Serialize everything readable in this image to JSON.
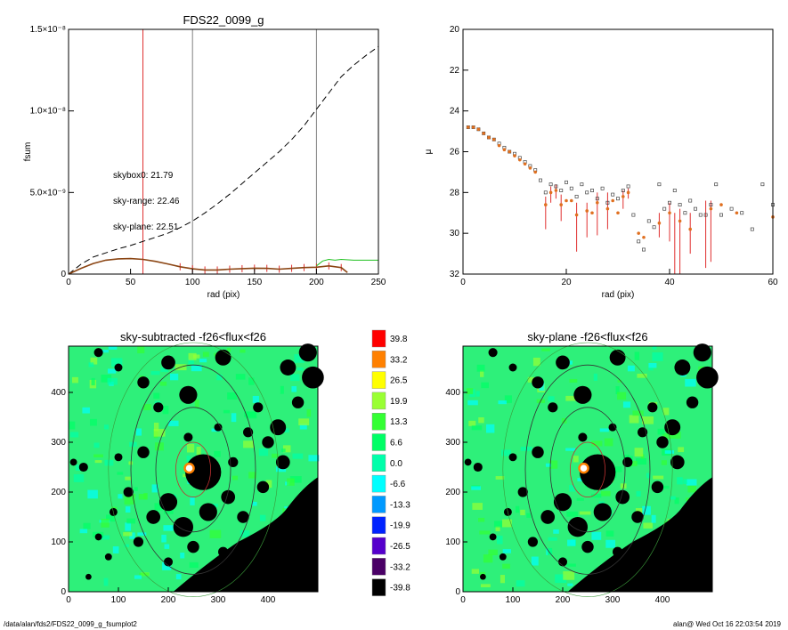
{
  "footer": {
    "path": "/data/alan/fds2/FDS22_0099_g_fsumplot2",
    "stamp": "alan@  Wed Oct 16 22:03:54 2019"
  },
  "chart_data": [
    {
      "type": "line",
      "title": "FDS22_0099_g",
      "xlabel": "rad (pix)",
      "ylabel": "fsum",
      "xlim": [
        0,
        250
      ],
      "ylim": [
        0,
        1.5e-08
      ],
      "xticks": [
        "0",
        "50",
        "100",
        "150",
        "200",
        "250"
      ],
      "yticks": [
        "0",
        "5.0×10⁻⁹",
        "1.0×10⁻⁸",
        "1.5×10⁻⁸"
      ],
      "vlines": [
        {
          "x": 60,
          "color": "#e03030"
        },
        {
          "x": 100,
          "color": "#808080"
        },
        {
          "x": 200,
          "color": "#808080"
        }
      ],
      "annotations": [
        {
          "text": "skybox0: 21.79",
          "color": "#000000"
        },
        {
          "text": "sky-range: 22.46",
          "color": "#e02020"
        },
        {
          "text": "sky-plane: 22.51",
          "color": "#20c020"
        }
      ],
      "series": [
        {
          "style": "dashed",
          "color": "#000000",
          "x": [
            0,
            10,
            20,
            30,
            40,
            50,
            60,
            70,
            80,
            90,
            100,
            110,
            120,
            130,
            140,
            150,
            160,
            170,
            180,
            190,
            200,
            210,
            220,
            230,
            240,
            250
          ],
          "y": [
            0,
            6e-10,
            1.05e-09,
            1.3e-09,
            1.55e-09,
            1.75e-09,
            2e-09,
            2.25e-09,
            2.5e-09,
            2.85e-09,
            3.25e-09,
            3.75e-09,
            4.3e-09,
            4.9e-09,
            5.55e-09,
            6.2e-09,
            6.85e-09,
            7.5e-09,
            8.25e-09,
            9.1e-09,
            1.01e-08,
            1.11e-08,
            1.21e-08,
            1.28e-08,
            1.34e-08,
            1.395e-08
          ]
        },
        {
          "style": "solid",
          "color": "#8b4513",
          "x": [
            0,
            10,
            20,
            30,
            40,
            50,
            60,
            70,
            80,
            90,
            100,
            110,
            120,
            130,
            140,
            150,
            160,
            170,
            180,
            190,
            200,
            210,
            220,
            225
          ],
          "y": [
            0,
            3.5e-10,
            6.5e-10,
            8.5e-10,
            9.3e-10,
            9.5e-10,
            9e-10,
            7.8e-10,
            6.2e-10,
            4.5e-10,
            3.2e-10,
            2.5e-10,
            2.5e-10,
            3e-10,
            3.3e-10,
            3.6e-10,
            3.5e-10,
            3e-10,
            3.5e-10,
            4e-10,
            4.2e-10,
            5e-10,
            4e-10,
            1e-10
          ]
        },
        {
          "style": "solid",
          "color": "#20c020",
          "x": [
            200,
            205,
            210,
            215,
            220,
            230,
            240,
            250
          ],
          "y": [
            5e-10,
            8e-10,
            9e-10,
            8.5e-10,
            9e-10,
            8.5e-10,
            8.5e-10,
            8.5e-10
          ]
        }
      ]
    },
    {
      "type": "scatter",
      "xlabel": "rad (pix)",
      "ylabel": "μ",
      "xlim": [
        0,
        60
      ],
      "ylim": [
        32,
        20
      ],
      "xticks": [
        "0",
        "20",
        "40",
        "60"
      ],
      "yticks": [
        "20",
        "22",
        "24",
        "26",
        "28",
        "30",
        "32"
      ],
      "series": [
        {
          "marker": "square",
          "color": "#000000",
          "x": [
            1,
            2,
            3,
            4,
            5,
            6,
            7,
            8,
            9,
            10,
            11,
            12,
            13,
            14,
            15,
            16,
            17,
            18,
            19,
            20,
            21,
            22,
            23,
            24,
            25,
            26,
            27,
            28,
            29,
            30,
            31,
            32,
            33,
            34,
            35,
            36,
            37,
            38,
            39,
            40,
            41,
            42,
            43,
            44,
            45,
            46,
            47,
            48,
            49,
            50,
            52,
            54,
            56,
            58,
            60
          ],
          "y": [
            24.8,
            24.8,
            24.9,
            25.1,
            25.3,
            25.4,
            25.6,
            25.8,
            26.0,
            26.1,
            26.3,
            26.5,
            26.7,
            26.9,
            27.4,
            28.0,
            27.6,
            27.7,
            27.9,
            27.5,
            27.8,
            28.2,
            27.6,
            28.0,
            27.9,
            28.3,
            27.8,
            28.5,
            28.1,
            28.3,
            27.9,
            27.7,
            29.1,
            30.4,
            30.8,
            29.4,
            29.7,
            27.6,
            28.8,
            28.5,
            27.9,
            28.6,
            29.0,
            28.4,
            28.8,
            29.1,
            29.1,
            28.6,
            27.6,
            29.1,
            28.8,
            29.0,
            29.8,
            27.6,
            28.6
          ]
        },
        {
          "marker": "dot",
          "color": "#e03030",
          "x": [
            1,
            2,
            3,
            4,
            5,
            6,
            7,
            8,
            9,
            10,
            11,
            12,
            13,
            14,
            16,
            17,
            18,
            19,
            20,
            21,
            22,
            24,
            25,
            26,
            28,
            29,
            30,
            31,
            32,
            34,
            35,
            38,
            40,
            42,
            44,
            48,
            50,
            53,
            60
          ],
          "y": [
            24.8,
            24.8,
            24.9,
            25.1,
            25.3,
            25.4,
            25.7,
            25.9,
            26.0,
            26.2,
            26.4,
            26.6,
            26.8,
            27.0,
            28.6,
            28.0,
            27.9,
            28.6,
            28.4,
            28.4,
            29.1,
            28.9,
            29.0,
            28.5,
            28.8,
            28.4,
            29.0,
            28.2,
            28.0,
            30.0,
            30.2,
            29.5,
            29.0,
            29.4,
            29.8,
            28.8,
            28.6,
            29.0,
            29.2
          ]
        },
        {
          "marker": "errorbar",
          "color": "#e03030",
          "x": [
            16,
            17,
            18,
            19,
            22,
            24,
            26,
            28,
            31,
            32,
            38,
            40,
            41,
            42,
            44,
            47,
            48,
            60
          ],
          "y1": [
            28.2,
            27.7,
            27.6,
            28.1,
            28.5,
            28.5,
            28.0,
            28.0,
            27.9,
            27.8,
            29.0,
            28.5,
            29.0,
            28.8,
            29.0,
            28.4,
            28.4,
            28.5
          ],
          "y2": [
            29.8,
            28.5,
            28.3,
            29.4,
            30.9,
            30.2,
            30.1,
            29.8,
            28.8,
            28.3,
            30.2,
            30.4,
            32.0,
            32.0,
            31.0,
            31.7,
            31.4,
            30.0
          ]
        }
      ]
    },
    {
      "type": "heatmap",
      "title": "sky-subtracted -f26<flux<f26",
      "xlim": [
        0,
        500
      ],
      "ylim": [
        0,
        500
      ],
      "xticks": [
        "0",
        "100",
        "200",
        "300",
        "400"
      ],
      "yticks": [
        "0",
        "100",
        "200",
        "300",
        "400"
      ]
    },
    {
      "type": "heatmap",
      "title": "sky-plane -f26<flux<f26",
      "xlim": [
        0,
        500
      ],
      "ylim": [
        0,
        500
      ],
      "xticks": [
        "0",
        "100",
        "200",
        "300",
        "400"
      ],
      "yticks": [
        "0",
        "100",
        "200",
        "300",
        "400"
      ]
    }
  ],
  "colorbar": {
    "labels": [
      "39.8",
      "33.2",
      "26.5",
      "19.9",
      "13.3",
      "6.6",
      "0.0",
      "-6.6",
      "-13.3",
      "-19.9",
      "-26.5",
      "-33.2",
      "-39.8"
    ],
    "colors": [
      "#ff0000",
      "#ff8000",
      "#ffff00",
      "#99ff33",
      "#33ff33",
      "#00ff66",
      "#00ffaa",
      "#00ffff",
      "#0099ff",
      "#0022ff",
      "#5500cc",
      "#4a0066",
      "#000000"
    ]
  }
}
